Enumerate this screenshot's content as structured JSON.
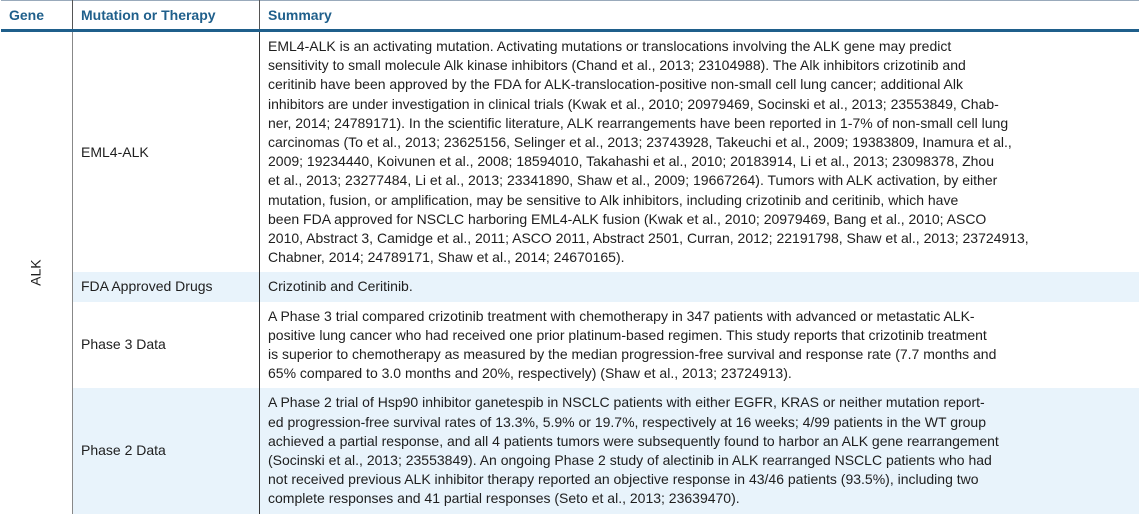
{
  "headers": {
    "gene": "Gene",
    "mutation": "Mutation or Therapy",
    "summary": "Summary"
  },
  "gene": "ALK",
  "rows": [
    {
      "mutation": "EML4-ALK",
      "lines": [
        "EML4-ALK is an activating mutation.  Activating mutations or translocations involving the ALK gene may predict",
        "sensitivity to small molecule Alk kinase inhibitors (Chand et al., 2013; 23104988). The Alk inhibitors crizotinib and",
        "ceritinib have been approved by the FDA for ALK-translocation-positive non-small cell lung cancer; additional Alk",
        "inhibitors are under investigation in clinical trials (Kwak et al., 2010; 20979469, Socinski et al., 2013; 23553849, Chab-",
        "ner, 2014; 24789171). In the scientific literature, ALK rearrangements have been reported in 1-7% of non-small cell lung",
        "carcinomas (To et al., 2013; 23625156, Selinger et al., 2013; 23743928, Takeuchi et al., 2009; 19383809, Inamura et al.,",
        "2009; 19234440, Koivunen et al., 2008; 18594010, Takahashi et al., 2010; 20183914, Li et al., 2013; 23098378, Zhou",
        "et al., 2013; 23277484, Li et al., 2013; 23341890, Shaw et al., 2009; 19667264). Tumors with ALK activation, by either",
        "mutation, fusion, or amplification, may be sensitive to Alk inhibitors, including crizotinib and ceritinib, which have",
        "been FDA approved for NSCLC harboring EML4-ALK fusion (Kwak et al., 2010; 20979469, Bang et al., 2010; ASCO",
        "2010, Abstract 3, Camidge et al., 2011; ASCO 2011, Abstract 2501, Curran, 2012; 22191798, Shaw et al., 2013; 23724913,",
        "Chabner, 2014; 24789171, Shaw et al., 2014; 24670165)."
      ]
    },
    {
      "mutation": "FDA Approved Drugs",
      "lines": [
        "Crizotinib and Ceritinib."
      ]
    },
    {
      "mutation": "Phase 3 Data",
      "lines": [
        "A Phase 3 trial compared crizotinib treatment with chemotherapy in 347 patients with advanced or metastatic ALK-",
        "positive lung cancer who had received one prior platinum-based regimen. This study reports that crizotinib treatment",
        "is superior to chemotherapy as measured by the median progression-free survival and response rate (7.7 months and",
        "65% compared to 3.0 months and 20%, respectively) (Shaw et al., 2013; 23724913)."
      ]
    },
    {
      "mutation": "Phase 2 Data",
      "lines": [
        "A Phase 2 trial of Hsp90 inhibitor ganetespib in NSCLC patients with either EGFR, KRAS or neither mutation report-",
        "ed progression-free survival rates of 13.3%, 5.9% or 19.7%, respectively at 16 weeks; 4/99 patients in the WT group",
        "achieved a partial response, and all 4 patients tumors were subsequently found to harbor an ALK gene rearrangement",
        "(Socinski et al., 2013; 23553849). An ongoing Phase 2 study of alectinib in ALK rearranged NSCLC patients who had",
        "not received previous ALK inhibitor therapy reported an objective response in 43/46 patients (93.5%), including two",
        "complete responses and 41 partial responses (Seto et al., 2013; 23639470)."
      ]
    }
  ],
  "colors": {
    "header_text": "#1f5f8b",
    "alt_row": "#e8f3fb"
  }
}
